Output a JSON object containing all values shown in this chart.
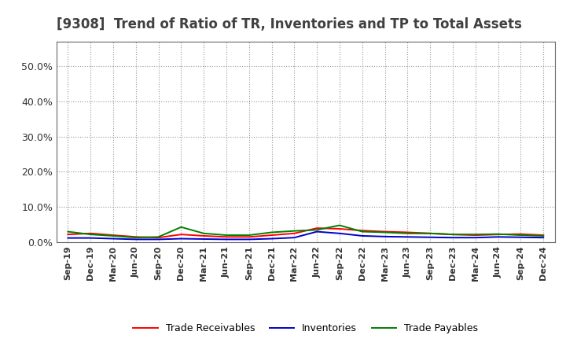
{
  "title": "[9308]  Trend of Ratio of TR, Inventories and TP to Total Assets",
  "x_labels": [
    "Sep-19",
    "Dec-19",
    "Mar-20",
    "Jun-20",
    "Sep-20",
    "Dec-20",
    "Mar-21",
    "Jun-21",
    "Sep-21",
    "Dec-21",
    "Mar-22",
    "Jun-22",
    "Sep-22",
    "Dec-22",
    "Mar-23",
    "Jun-23",
    "Sep-23",
    "Dec-23",
    "Mar-24",
    "Jun-24",
    "Sep-24",
    "Dec-24"
  ],
  "trade_receivables": [
    0.022,
    0.025,
    0.02,
    0.015,
    0.013,
    0.022,
    0.018,
    0.015,
    0.015,
    0.02,
    0.025,
    0.04,
    0.038,
    0.033,
    0.03,
    0.028,
    0.025,
    0.022,
    0.02,
    0.022,
    0.023,
    0.02
  ],
  "inventories": [
    0.012,
    0.012,
    0.01,
    0.008,
    0.008,
    0.01,
    0.009,
    0.008,
    0.008,
    0.01,
    0.013,
    0.03,
    0.025,
    0.018,
    0.016,
    0.015,
    0.014,
    0.013,
    0.013,
    0.015,
    0.014,
    0.013
  ],
  "trade_payables": [
    0.03,
    0.022,
    0.018,
    0.013,
    0.015,
    0.043,
    0.025,
    0.02,
    0.02,
    0.028,
    0.032,
    0.035,
    0.048,
    0.03,
    0.028,
    0.025,
    0.025,
    0.022,
    0.022,
    0.023,
    0.02,
    0.018
  ],
  "ylim": [
    0,
    0.57
  ],
  "yticks": [
    0.0,
    0.1,
    0.2,
    0.3,
    0.4,
    0.5
  ],
  "line_colors": {
    "trade_receivables": "#ff0000",
    "inventories": "#0000cc",
    "trade_payables": "#008000"
  },
  "legend_labels": [
    "Trade Receivables",
    "Inventories",
    "Trade Payables"
  ],
  "background_color": "#ffffff",
  "plot_bg_color": "#ffffff",
  "grid_color": "#999999",
  "title_fontsize": 12,
  "title_color": "#404040",
  "tick_label_fontsize": 8,
  "ytick_label_fontsize": 9
}
